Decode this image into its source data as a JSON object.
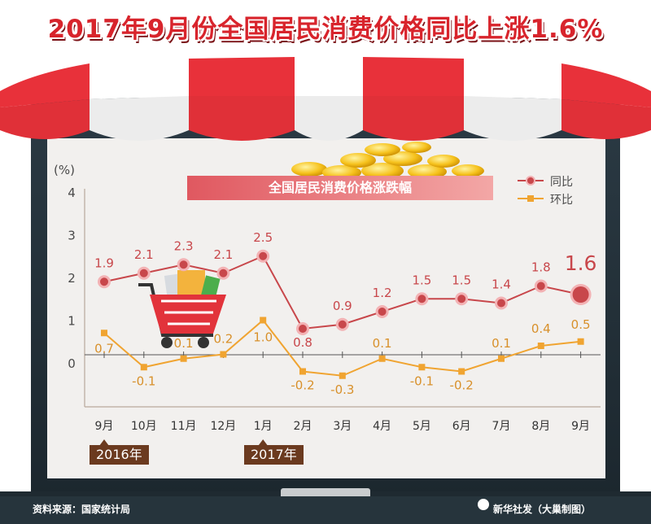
{
  "headline": "2017年9月份全国居民消费价格同比上涨1.6%",
  "footer": {
    "source": "资料来源：国家统计局",
    "credit": "新华社发（大巢制图）"
  },
  "colors": {
    "red": "#d8242c",
    "yoy": "#c8474b",
    "mom": "#f0a431",
    "board": "#223039",
    "year_tag": "#6b3a1f"
  },
  "chart_data": {
    "type": "line",
    "title": "全国居民消费价格涨跌幅",
    "ylabel": "(%)",
    "ylim": [
      -1,
      4
    ],
    "yticks": [
      "4",
      "3",
      "2",
      "1",
      "0"
    ],
    "categories": [
      "9月",
      "10月",
      "11月",
      "12月",
      "1月",
      "2月",
      "3月",
      "4月",
      "5月",
      "6月",
      "7月",
      "8月",
      "9月"
    ],
    "year_markers": [
      {
        "label": "2016年",
        "category_index": 0
      },
      {
        "label": "2017年",
        "category_index": 4
      }
    ],
    "legend_position": "top-right",
    "series": [
      {
        "name": "同比",
        "values": [
          1.9,
          2.1,
          2.3,
          2.1,
          2.5,
          0.8,
          0.9,
          1.2,
          1.5,
          1.5,
          1.4,
          1.8,
          1.6
        ],
        "labels": [
          "1.9",
          "2.1",
          "2.3",
          "2.1",
          "2.5",
          "0.8",
          "0.9",
          "1.2",
          "1.5",
          "1.5",
          "1.4",
          "1.8",
          "1.6"
        ]
      },
      {
        "name": "环比",
        "values": [
          0.7,
          -0.1,
          0.1,
          0.2,
          1.0,
          -0.2,
          -0.3,
          0.1,
          -0.1,
          -0.2,
          0.1,
          0.4,
          0.5
        ],
        "labels": [
          "0.7",
          "-0.1",
          "0.1",
          "0.2",
          "1.0",
          "-0.2",
          "-0.3",
          "0.1",
          "-0.1",
          "-0.2",
          "0.1",
          "0.4",
          "0.5"
        ]
      }
    ]
  }
}
